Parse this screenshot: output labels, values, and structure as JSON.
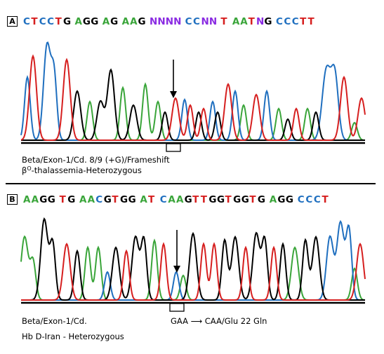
{
  "panelA": {
    "label": "A",
    "sequence": [
      {
        "b": "C",
        "c": "#1f6fbf"
      },
      {
        "b": "T",
        "c": "#d61f1f"
      },
      {
        "b": "C",
        "c": "#1f6fbf"
      },
      {
        "b": "C",
        "c": "#1f6fbf"
      },
      {
        "b": "T",
        "c": "#d61f1f"
      },
      {
        "b": "G",
        "c": "#000000"
      },
      {
        "b": " ",
        "c": "#000000"
      },
      {
        "b": "A",
        "c": "#3aa53a"
      },
      {
        "b": "G",
        "c": "#000000"
      },
      {
        "b": "G",
        "c": "#000000"
      },
      {
        "b": " ",
        "c": "#000000"
      },
      {
        "b": "A",
        "c": "#3aa53a"
      },
      {
        "b": "G",
        "c": "#000000"
      },
      {
        "b": " ",
        "c": "#000000"
      },
      {
        "b": "A",
        "c": "#3aa53a"
      },
      {
        "b": "A",
        "c": "#3aa53a"
      },
      {
        "b": "G",
        "c": "#000000"
      },
      {
        "b": " ",
        "c": "#000000"
      },
      {
        "b": "N",
        "c": "#8a2be2"
      },
      {
        "b": "N",
        "c": "#8a2be2"
      },
      {
        "b": "N",
        "c": "#8a2be2"
      },
      {
        "b": "N",
        "c": "#8a2be2"
      },
      {
        "b": " ",
        "c": "#000000"
      },
      {
        "b": "C",
        "c": "#1f6fbf"
      },
      {
        "b": "C",
        "c": "#1f6fbf"
      },
      {
        "b": "N",
        "c": "#8a2be2"
      },
      {
        "b": "N",
        "c": "#8a2be2"
      },
      {
        "b": " ",
        "c": "#000000"
      },
      {
        "b": "T",
        "c": "#d61f1f"
      },
      {
        "b": " ",
        "c": "#000000"
      },
      {
        "b": "A",
        "c": "#3aa53a"
      },
      {
        "b": "A",
        "c": "#3aa53a"
      },
      {
        "b": "T",
        "c": "#d61f1f"
      },
      {
        "b": "N",
        "c": "#8a2be2"
      },
      {
        "b": "G",
        "c": "#000000"
      },
      {
        "b": " ",
        "c": "#000000"
      },
      {
        "b": "C",
        "c": "#1f6fbf"
      },
      {
        "b": "C",
        "c": "#1f6fbf"
      },
      {
        "b": "C",
        "c": "#1f6fbf"
      },
      {
        "b": "T",
        "c": "#d61f1f"
      },
      {
        "b": "T",
        "c": "#d61f1f"
      }
    ],
    "caption_line1": "Beta/Exon-1/Cd. 8/9 (+G)/Frameshift",
    "caption_line2_prefix": "β",
    "caption_line2_sup": "O",
    "caption_line2_rest": "-thalassemia-Heterozygous"
  },
  "panelB": {
    "label": "B",
    "sequence": [
      {
        "b": "A",
        "c": "#3aa53a"
      },
      {
        "b": "A",
        "c": "#3aa53a"
      },
      {
        "b": "G",
        "c": "#000000"
      },
      {
        "b": "G",
        "c": "#000000"
      },
      {
        "b": " ",
        "c": "#000000"
      },
      {
        "b": "T",
        "c": "#d61f1f"
      },
      {
        "b": "G",
        "c": "#000000"
      },
      {
        "b": " ",
        "c": "#000000"
      },
      {
        "b": "A",
        "c": "#3aa53a"
      },
      {
        "b": "A",
        "c": "#3aa53a"
      },
      {
        "b": "C",
        "c": "#1f6fbf"
      },
      {
        "b": "G",
        "c": "#000000"
      },
      {
        "b": "T",
        "c": "#d61f1f"
      },
      {
        "b": "G",
        "c": "#000000"
      },
      {
        "b": "G",
        "c": "#000000"
      },
      {
        "b": " ",
        "c": "#000000"
      },
      {
        "b": "A",
        "c": "#3aa53a"
      },
      {
        "b": "T",
        "c": "#d61f1f"
      },
      {
        "b": " ",
        "c": "#000000"
      },
      {
        "b": "C",
        "c": "#1f6fbf"
      },
      {
        "b": "A",
        "c": "#3aa53a"
      },
      {
        "b": "A",
        "c": "#3aa53a"
      },
      {
        "b": "G",
        "c": "#000000"
      },
      {
        "b": "T",
        "c": "#d61f1f"
      },
      {
        "b": "T",
        "c": "#d61f1f"
      },
      {
        "b": "G",
        "c": "#000000"
      },
      {
        "b": "G",
        "c": "#000000"
      },
      {
        "b": "T",
        "c": "#d61f1f"
      },
      {
        "b": "G",
        "c": "#000000"
      },
      {
        "b": "G",
        "c": "#000000"
      },
      {
        "b": "T",
        "c": "#d61f1f"
      },
      {
        "b": "G",
        "c": "#000000"
      },
      {
        "b": " ",
        "c": "#000000"
      },
      {
        "b": "A",
        "c": "#3aa53a"
      },
      {
        "b": "G",
        "c": "#000000"
      },
      {
        "b": "G",
        "c": "#000000"
      },
      {
        "b": " ",
        "c": "#000000"
      },
      {
        "b": "C",
        "c": "#1f6fbf"
      },
      {
        "b": "C",
        "c": "#1f6fbf"
      },
      {
        "b": "C",
        "c": "#1f6fbf"
      },
      {
        "b": "T",
        "c": "#d61f1f"
      }
    ],
    "caption_line1": "Beta/Exon-1/Cd.",
    "caption_mutation": "GAA ⟶ CAA/Glu 22 Gln",
    "caption_line2": "Hb D-Iran - Heterozygous"
  },
  "colors": {
    "A": "#3aa53a",
    "C": "#1f6fbf",
    "G": "#000000",
    "T": "#d61f1f",
    "N": "#8a2be2"
  }
}
